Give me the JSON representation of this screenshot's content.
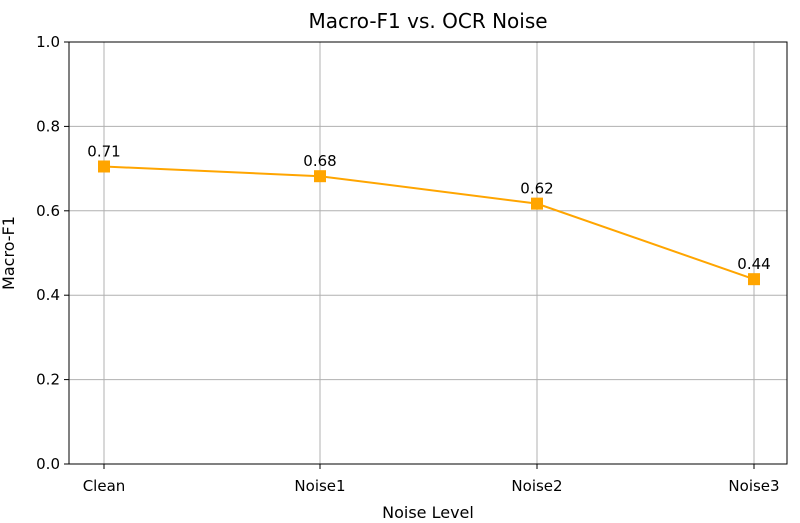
{
  "chart_data": {
    "type": "line",
    "title": "Macro-F1 vs. OCR Noise",
    "xlabel": "Noise Level",
    "ylabel": "Macro-F1",
    "categories": [
      "Clean",
      "Noise1",
      "Noise2",
      "Noise3"
    ],
    "series": [
      {
        "values": [
          0.705,
          0.682,
          0.617,
          0.438
        ],
        "data_labels": [
          "0.71",
          "0.68",
          "0.62",
          "0.44"
        ],
        "color": "#FFA500",
        "marker": "square"
      }
    ],
    "ylim": [
      0,
      1.0
    ],
    "yticks": [
      "0.0",
      "0.2",
      "0.4",
      "0.6",
      "0.8",
      "1.0"
    ],
    "grid": true,
    "legend": "none"
  }
}
